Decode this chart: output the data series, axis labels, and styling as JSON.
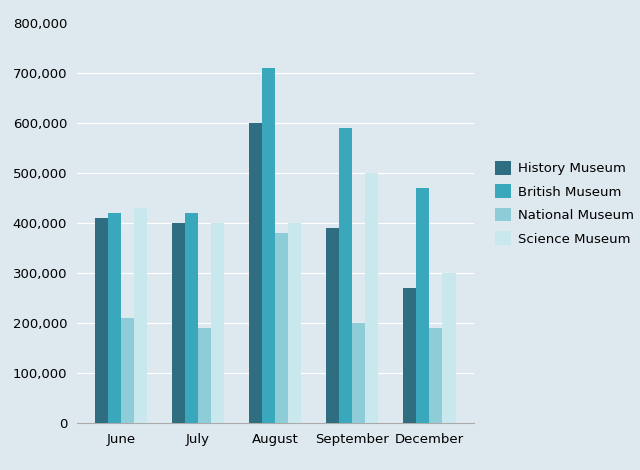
{
  "months": [
    "June",
    "July",
    "August",
    "September",
    "December"
  ],
  "museums": [
    "History Museum",
    "British Museum",
    "National Museum",
    "Science Museum"
  ],
  "values": {
    "History Museum": [
      410000,
      400000,
      600000,
      390000,
      270000
    ],
    "British Museum": [
      420000,
      420000,
      710000,
      590000,
      470000
    ],
    "National Museum": [
      210000,
      190000,
      380000,
      200000,
      190000
    ],
    "Science Museum": [
      430000,
      400000,
      400000,
      500000,
      300000
    ]
  },
  "colors": {
    "History Museum": "#2E6E80",
    "British Museum": "#3AA8BC",
    "National Museum": "#8ECDD8",
    "Science Museum": "#C8E8EE"
  },
  "ylim": [
    0,
    800000
  ],
  "ytick_step": 100000,
  "plot_bg_color": "#DDE8EF",
  "outer_bg_color": "#DDE8EF",
  "bar_width": 0.17,
  "grid_color": "#FFFFFF",
  "legend_fontsize": 9.5,
  "tick_fontsize": 9.5
}
